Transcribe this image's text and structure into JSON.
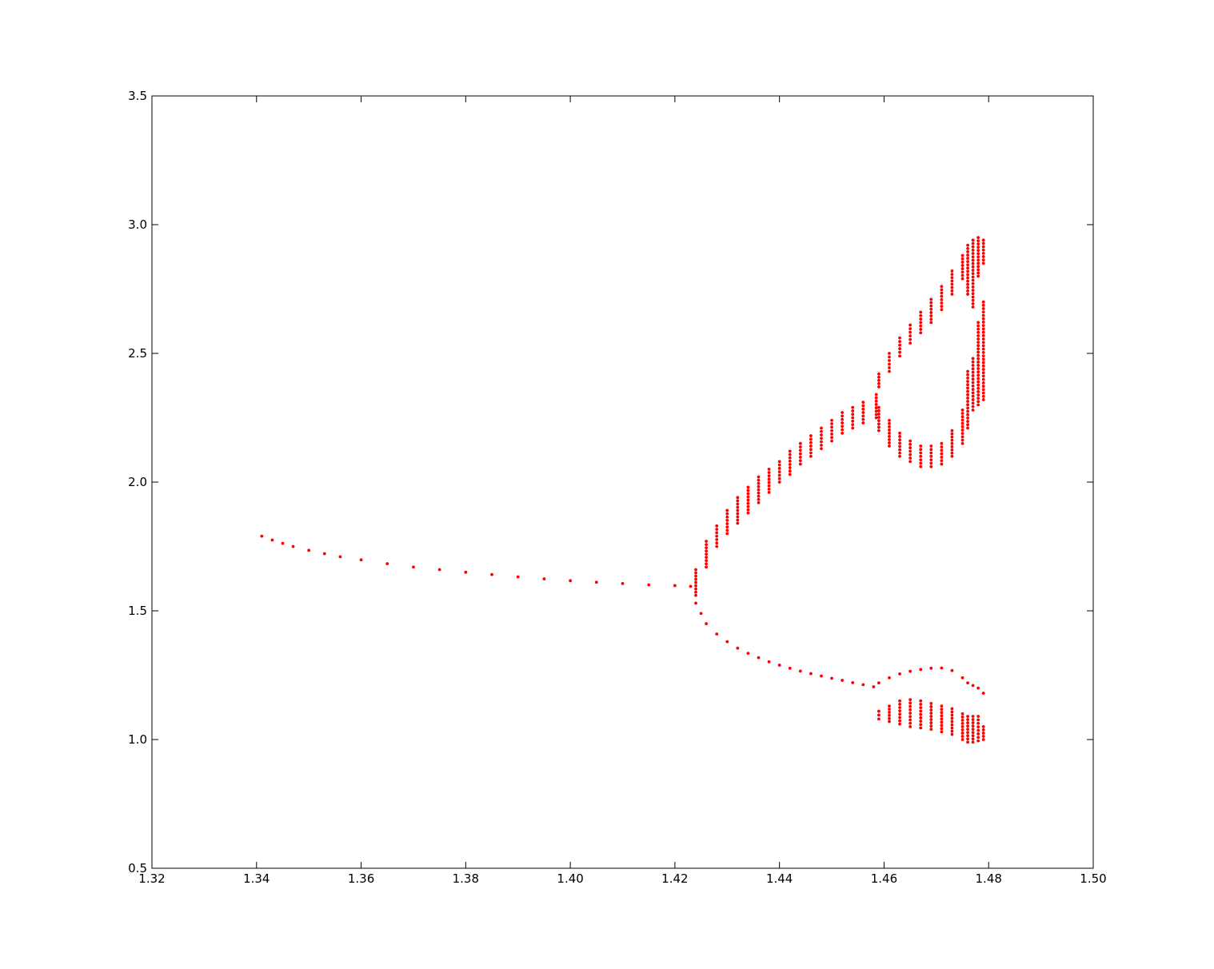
{
  "chart_data": {
    "type": "scatter",
    "title": "",
    "xlabel": "",
    "ylabel": "",
    "xlim": [
      1.32,
      1.5
    ],
    "ylim": [
      0.5,
      3.5
    ],
    "xticks": [
      "1.32",
      "1.34",
      "1.36",
      "1.38",
      "1.40",
      "1.42",
      "1.44",
      "1.46",
      "1.48",
      "1.50"
    ],
    "yticks": [
      "0.5",
      "1.0",
      "1.5",
      "2.0",
      "2.5",
      "3.0",
      "3.5"
    ],
    "xtick_values": [
      1.32,
      1.34,
      1.36,
      1.38,
      1.4,
      1.42,
      1.44,
      1.46,
      1.48,
      1.5
    ],
    "ytick_values": [
      0.5,
      1.0,
      1.5,
      2.0,
      2.5,
      3.0,
      3.5
    ],
    "grid": false,
    "legend": "none",
    "marker_color": "#ff0000",
    "series": [
      {
        "x": [
          1.341,
          1.343,
          1.345,
          1.347,
          1.35,
          1.353,
          1.356,
          1.36,
          1.365,
          1.37,
          1.375,
          1.38,
          1.385,
          1.39,
          1.395,
          1.4,
          1.405,
          1.41,
          1.415,
          1.42,
          1.423
        ],
        "y": [
          1.79,
          1.775,
          1.762,
          1.75,
          1.735,
          1.722,
          1.71,
          1.698,
          1.683,
          1.67,
          1.66,
          1.65,
          1.641,
          1.632,
          1.624,
          1.617,
          1.611,
          1.606,
          1.601,
          1.598,
          1.595
        ]
      },
      {
        "x": [
          1.424,
          1.426,
          1.428,
          1.43,
          1.432,
          1.434,
          1.436,
          1.438,
          1.44,
          1.442,
          1.444,
          1.446,
          1.448,
          1.45,
          1.452,
          1.454,
          1.456,
          1.4585
        ],
        "y_low": [
          1.56,
          1.67,
          1.75,
          1.8,
          1.84,
          1.88,
          1.92,
          1.96,
          2.0,
          2.03,
          2.07,
          2.1,
          2.13,
          2.16,
          2.19,
          2.21,
          2.23,
          2.25
        ],
        "y_high": [
          1.66,
          1.77,
          1.83,
          1.89,
          1.94,
          1.98,
          2.02,
          2.05,
          2.08,
          2.12,
          2.15,
          2.18,
          2.21,
          2.24,
          2.27,
          2.29,
          2.31,
          2.34
        ]
      },
      {
        "x": [
          1.459,
          1.461,
          1.463,
          1.465,
          1.467,
          1.469,
          1.471,
          1.473,
          1.475,
          1.476,
          1.477,
          1.478,
          1.479
        ],
        "y_low": [
          2.37,
          2.43,
          2.49,
          2.54,
          2.58,
          2.62,
          2.67,
          2.73,
          2.79,
          2.73,
          2.68,
          2.8,
          2.85
        ],
        "y_high": [
          2.42,
          2.5,
          2.56,
          2.61,
          2.66,
          2.71,
          2.76,
          2.82,
          2.88,
          2.92,
          2.94,
          2.95,
          2.94
        ]
      },
      {
        "x": [
          1.459,
          1.461,
          1.463,
          1.465,
          1.467,
          1.469,
          1.471,
          1.473,
          1.475,
          1.476,
          1.477,
          1.478,
          1.479
        ],
        "y_low": [
          2.2,
          2.14,
          2.1,
          2.08,
          2.06,
          2.06,
          2.07,
          2.1,
          2.15,
          2.21,
          2.28,
          2.3,
          2.32
        ],
        "y_high": [
          2.29,
          2.24,
          2.19,
          2.16,
          2.14,
          2.14,
          2.15,
          2.2,
          2.28,
          2.43,
          2.48,
          2.62,
          2.7
        ]
      },
      {
        "x": [
          1.424,
          1.425,
          1.426,
          1.428,
          1.43,
          1.432,
          1.434,
          1.436,
          1.438,
          1.44,
          1.442,
          1.444,
          1.446,
          1.448,
          1.45,
          1.452,
          1.454,
          1.456,
          1.458
        ],
        "y": [
          1.53,
          1.49,
          1.45,
          1.41,
          1.38,
          1.355,
          1.335,
          1.318,
          1.302,
          1.289,
          1.277,
          1.266,
          1.256,
          1.247,
          1.238,
          1.23,
          1.221,
          1.213,
          1.205
        ]
      },
      {
        "x": [
          1.459,
          1.461,
          1.463,
          1.465,
          1.467,
          1.469,
          1.471,
          1.473,
          1.475,
          1.476,
          1.477,
          1.478,
          1.479
        ],
        "y": [
          1.22,
          1.24,
          1.255,
          1.265,
          1.272,
          1.277,
          1.278,
          1.268,
          1.24,
          1.22,
          1.21,
          1.2,
          1.18
        ]
      },
      {
        "x": [
          1.459,
          1.461,
          1.463,
          1.465,
          1.467,
          1.469,
          1.471,
          1.473,
          1.475,
          1.476,
          1.477,
          1.478,
          1.479
        ],
        "y_low": [
          1.08,
          1.07,
          1.06,
          1.05,
          1.045,
          1.04,
          1.03,
          1.02,
          1.0,
          0.99,
          0.99,
          0.995,
          1.0
        ],
        "y_high": [
          1.11,
          1.13,
          1.15,
          1.155,
          1.15,
          1.14,
          1.13,
          1.12,
          1.1,
          1.09,
          1.09,
          1.09,
          1.05
        ]
      }
    ]
  }
}
